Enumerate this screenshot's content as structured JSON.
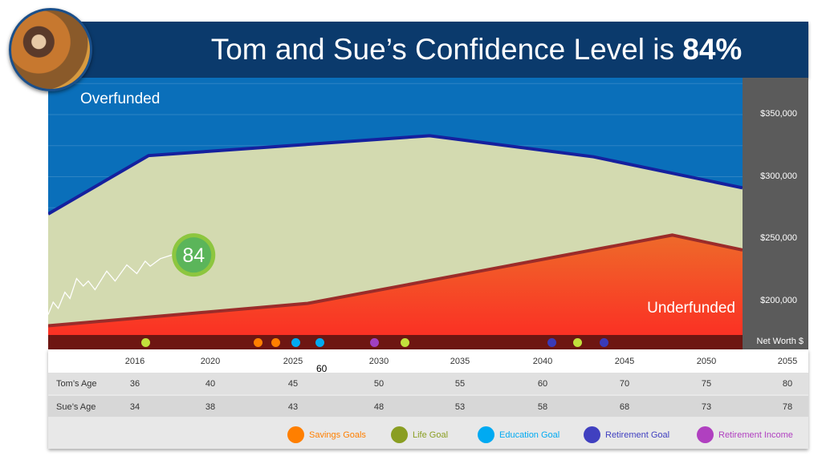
{
  "header": {
    "title_prefix": "Tom and Sue’s Confidence Level is ",
    "title_value": "84%"
  },
  "chart_data": {
    "type": "area",
    "labels": {
      "over": "Overfunded",
      "under": "Underfunded"
    },
    "y_axis_label": "Net Worth $",
    "ylim": [
      165000,
      380000
    ],
    "xlim": [
      2010.8,
      2052.3
    ],
    "yticks": [
      {
        "v": 350000,
        "label": "$350,000"
      },
      {
        "v": 300000,
        "label": "$300,000"
      },
      {
        "v": 250000,
        "label": "$250,000"
      },
      {
        "v": 200000,
        "label": "$200,000"
      }
    ],
    "upper_series": [
      [
        2010.8,
        270000
      ],
      [
        2016.8,
        317000
      ],
      [
        2033.6,
        333000
      ],
      [
        2043.4,
        316000
      ],
      [
        2052.3,
        291000
      ]
    ],
    "lower_series": [
      [
        2010.8,
        180000
      ],
      [
        2026.3,
        198000
      ],
      [
        2048.1,
        253000
      ],
      [
        2052.3,
        241000
      ]
    ],
    "confidence_trend": [
      [
        2010.8,
        189000
      ],
      [
        2011.1,
        199000
      ],
      [
        2011.4,
        194000
      ],
      [
        2011.8,
        207000
      ],
      [
        2012.1,
        202000
      ],
      [
        2012.5,
        218000
      ],
      [
        2012.9,
        212000
      ],
      [
        2013.2,
        216000
      ],
      [
        2013.6,
        209000
      ],
      [
        2014.3,
        224000
      ],
      [
        2014.8,
        216000
      ],
      [
        2015.5,
        229000
      ],
      [
        2016.1,
        222000
      ],
      [
        2016.6,
        232000
      ],
      [
        2016.9,
        228000
      ],
      [
        2017.5,
        234000
      ],
      [
        2018.2,
        237000
      ]
    ],
    "confidence_score": "84",
    "colors": {
      "over": "#0a6fba",
      "mid": "#d3dab0",
      "under": "#f4502a",
      "upper_line": "#15209e",
      "lower_line": "#9b2c2a",
      "badge": "#5bb55a"
    }
  },
  "events": [
    {
      "year": 2016.6,
      "type": "life"
    },
    {
      "year": 2023.3,
      "type": "savings"
    },
    {
      "year": 2024.4,
      "type": "savings"
    },
    {
      "year": 2025.6,
      "type": "education"
    },
    {
      "year": 2027.0,
      "type": "education"
    },
    {
      "year": 2030.3,
      "type": "retirement_income"
    },
    {
      "year": 2032.1,
      "type": "life"
    },
    {
      "year": 2040.9,
      "type": "retirement"
    },
    {
      "year": 2042.4,
      "type": "life"
    },
    {
      "year": 2044.0,
      "type": "retirement"
    }
  ],
  "table": {
    "years": [
      "2016",
      "2020",
      "2025",
      "2030",
      "2035",
      "2040",
      "2045",
      "2050",
      "2055"
    ],
    "stray": "60",
    "rows": [
      {
        "label": "Tom’s Age",
        "values": [
          "36",
          "40",
          "45",
          "50",
          "55",
          "60",
          "70",
          "75",
          "80"
        ]
      },
      {
        "label": "Sue’s Age",
        "values": [
          "34",
          "38",
          "43",
          "48",
          "53",
          "58",
          "68",
          "73",
          "78"
        ]
      }
    ]
  },
  "legend": [
    {
      "key": "savings",
      "label": "Savings Goals",
      "color": "#ff7f00"
    },
    {
      "key": "life",
      "label": "Life Goal",
      "color": "#8a9e22"
    },
    {
      "key": "education",
      "label": "Education Goal",
      "color": "#00aaf2"
    },
    {
      "key": "retirement",
      "label": "Retirement Goal",
      "color": "#4040c0"
    },
    {
      "key": "retirement_income",
      "label": "Retirement Income",
      "color": "#b040c0"
    }
  ],
  "dot_colors": {
    "savings": "#ff7f00",
    "life": "#c2e03c",
    "education": "#00aaf2",
    "retirement": "#3a3ab8",
    "retirement_income": "#a040c0"
  }
}
